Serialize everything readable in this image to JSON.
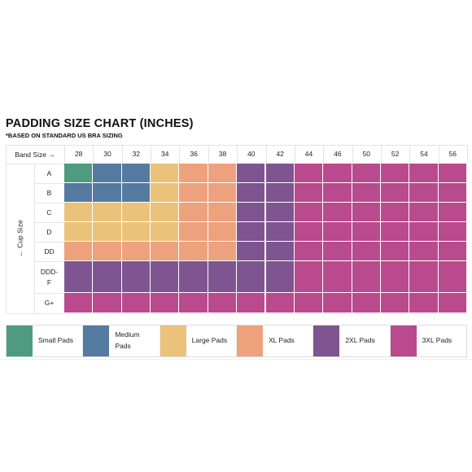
{
  "title": "PADDING SIZE CHART (INCHES)",
  "subtitle": "*BASED ON STANDARD US BRA SIZING",
  "chart_data": {
    "type": "heatmap",
    "x_axis_label": "Band Size →",
    "y_axis_label": "← Cup Size",
    "band_sizes": [
      "28",
      "30",
      "32",
      "34",
      "36",
      "38",
      "40",
      "42",
      "44",
      "46",
      "50",
      "52",
      "54",
      "56"
    ],
    "cup_sizes": [
      "A",
      "B",
      "C",
      "D",
      "DD",
      "DDD-\nF",
      "G+"
    ],
    "cells": [
      [
        "Small Pads",
        "Medium Pads",
        "Medium Pads",
        "Large Pads",
        "XL Pads",
        "XL Pads",
        "2XL Pads",
        "2XL Pads",
        "3XL Pads",
        "3XL Pads",
        "3XL Pads",
        "3XL Pads",
        "3XL Pads",
        "3XL Pads"
      ],
      [
        "Medium Pads",
        "Medium Pads",
        "Medium Pads",
        "Large Pads",
        "XL Pads",
        "XL Pads",
        "2XL Pads",
        "2XL Pads",
        "3XL Pads",
        "3XL Pads",
        "3XL Pads",
        "3XL Pads",
        "3XL Pads",
        "3XL Pads"
      ],
      [
        "Large Pads",
        "Large Pads",
        "Large Pads",
        "Large Pads",
        "XL Pads",
        "XL Pads",
        "2XL Pads",
        "2XL Pads",
        "3XL Pads",
        "3XL Pads",
        "3XL Pads",
        "3XL Pads",
        "3XL Pads",
        "3XL Pads"
      ],
      [
        "Large Pads",
        "Large Pads",
        "Large Pads",
        "Large Pads",
        "XL Pads",
        "XL Pads",
        "2XL Pads",
        "2XL Pads",
        "3XL Pads",
        "3XL Pads",
        "3XL Pads",
        "3XL Pads",
        "3XL Pads",
        "3XL Pads"
      ],
      [
        "XL Pads",
        "XL Pads",
        "XL Pads",
        "XL Pads",
        "XL Pads",
        "XL Pads",
        "2XL Pads",
        "2XL Pads",
        "3XL Pads",
        "3XL Pads",
        "3XL Pads",
        "3XL Pads",
        "3XL Pads",
        "3XL Pads"
      ],
      [
        "2XL Pads",
        "2XL Pads",
        "2XL Pads",
        "2XL Pads",
        "2XL Pads",
        "2XL Pads",
        "2XL Pads",
        "2XL Pads",
        "3XL Pads",
        "3XL Pads",
        "3XL Pads",
        "3XL Pads",
        "3XL Pads",
        "3XL Pads"
      ],
      [
        "3XL Pads",
        "3XL Pads",
        "3XL Pads",
        "3XL Pads",
        "3XL Pads",
        "3XL Pads",
        "3XL Pads",
        "3XL Pads",
        "3XL Pads",
        "3XL Pads",
        "3XL Pads",
        "3XL Pads",
        "3XL Pads",
        "3XL Pads"
      ]
    ],
    "legend": [
      {
        "label": "Small Pads",
        "color": "#4e9b81"
      },
      {
        "label": "Medium\nPads",
        "color": "#547aa0"
      },
      {
        "label": "Large Pads",
        "color": "#ebc27a"
      },
      {
        "label": "XL Pads",
        "color": "#eea17d"
      },
      {
        "label": "2XL Pads",
        "color": "#7e5590"
      },
      {
        "label": "3XL Pads",
        "color": "#b94a8d"
      }
    ],
    "colors": {
      "Small Pads": "#4e9b81",
      "Medium Pads": "#547aa0",
      "Large Pads": "#ebc27a",
      "XL Pads": "#eea17d",
      "2XL Pads": "#7e5590",
      "3XL Pads": "#b94a8d"
    }
  }
}
